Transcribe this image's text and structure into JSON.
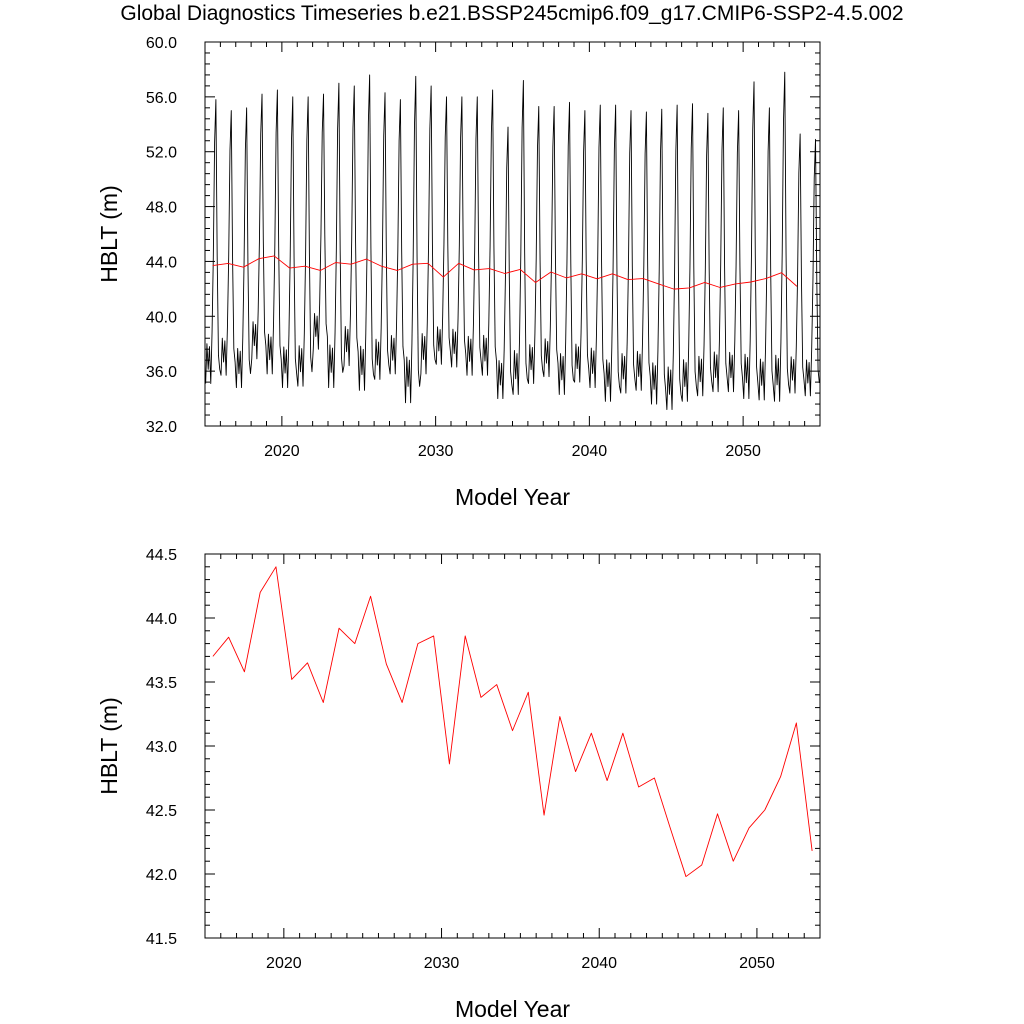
{
  "title": "Global Diagnostics Timeseries b.e21.BSSP245cmip6.f09_g17.CMIP6-SSP2-4.5.002",
  "colors": {
    "monthly": "#000000",
    "annual": "#ff0000"
  },
  "chart_data": [
    {
      "type": "line",
      "title": "Global Diagnostics Timeseries b.e21.BSSP245cmip6.f09_g17.CMIP6-SSP2-4.5.002",
      "xlabel": "Model Year",
      "ylabel": "HBLT (m)",
      "xlim": [
        2015,
        2055
      ],
      "ylim": [
        32.0,
        60.0
      ],
      "xticks": [
        2020,
        2030,
        2040,
        2050
      ],
      "xtick_labels": [
        "2020",
        "2030",
        "2040",
        "2050"
      ],
      "yticks": [
        32.0,
        36.0,
        40.0,
        44.0,
        48.0,
        52.0,
        56.0,
        60.0
      ],
      "ytick_labels": [
        "32.0",
        "36.0",
        "40.0",
        "44.0",
        "48.0",
        "52.0",
        "56.0",
        "60.0"
      ],
      "series": [
        {
          "color": "#000000",
          "resolution": "monthly",
          "start_year": 2015,
          "annual_max": [
            55.8,
            55.0,
            55.2,
            56.2,
            56.5,
            56.0,
            56.0,
            56.2,
            57.0,
            56.8,
            57.6,
            56.3,
            55.8,
            57.5,
            56.8,
            56.0,
            56.0,
            56.0,
            56.5,
            53.8,
            57.2,
            55.3,
            55.3,
            55.6,
            55.0,
            55.4,
            55.4,
            55.0,
            54.9,
            55.1,
            55.4,
            55.5,
            54.8,
            55.2,
            55.0,
            57.1,
            55.2,
            57.8,
            53.3,
            52.9
          ],
          "annual_min": [
            35.1,
            35.7,
            34.8,
            36.9,
            35.8,
            34.8,
            34.9,
            37.6,
            34.8,
            36.4,
            34.6,
            35.4,
            35.8,
            33.7,
            35.8,
            36.5,
            36.3,
            35.7,
            35.7,
            34.0,
            34.3,
            35.1,
            35.6,
            34.3,
            35.2,
            34.8,
            33.8,
            34.4,
            34.6,
            33.6,
            33.2,
            33.8,
            34.2,
            34.5,
            34.5,
            34.0,
            33.9,
            33.8,
            34.4,
            34.2
          ]
        },
        {
          "color": "#ff0000",
          "resolution": "annual",
          "x": [
            2015.5,
            2016.5,
            2017.5,
            2018.5,
            2019.5,
            2020.5,
            2021.5,
            2022.5,
            2023.5,
            2024.5,
            2025.5,
            2026.5,
            2027.5,
            2028.5,
            2029.5,
            2030.5,
            2031.5,
            2032.5,
            2033.5,
            2034.5,
            2035.5,
            2036.5,
            2037.5,
            2038.5,
            2039.5,
            2040.5,
            2041.5,
            2042.5,
            2043.5,
            2044.5,
            2045.5,
            2046.5,
            2047.5,
            2048.5,
            2049.5,
            2050.5,
            2051.5,
            2052.5,
            2053.5
          ],
          "values": [
            43.7,
            43.85,
            43.58,
            44.2,
            44.4,
            43.52,
            43.65,
            43.34,
            43.92,
            43.8,
            44.17,
            43.64,
            43.34,
            43.8,
            43.86,
            42.86,
            43.86,
            43.38,
            43.48,
            43.12,
            43.42,
            42.46,
            43.23,
            42.8,
            43.1,
            42.73,
            43.1,
            42.68,
            42.75,
            42.36,
            41.98,
            42.07,
            42.47,
            42.1,
            42.36,
            42.5,
            42.76,
            43.18,
            42.18
          ]
        }
      ]
    },
    {
      "type": "line",
      "xlabel": "Model Year",
      "ylabel": "HBLT (m)",
      "xlim": [
        2015,
        2054
      ],
      "ylim": [
        41.5,
        44.5
      ],
      "xticks": [
        2020,
        2030,
        2040,
        2050
      ],
      "xtick_labels": [
        "2020",
        "2030",
        "2040",
        "2050"
      ],
      "yticks": [
        41.5,
        42.0,
        42.5,
        43.0,
        43.5,
        44.0,
        44.5
      ],
      "ytick_labels": [
        "41.5",
        "42.0",
        "42.5",
        "43.0",
        "43.5",
        "44.0",
        "44.5"
      ],
      "series": [
        {
          "color": "#ff0000",
          "x": [
            2015.5,
            2016.5,
            2017.5,
            2018.5,
            2019.5,
            2020.5,
            2021.5,
            2022.5,
            2023.5,
            2024.5,
            2025.5,
            2026.5,
            2027.5,
            2028.5,
            2029.5,
            2030.5,
            2031.5,
            2032.5,
            2033.5,
            2034.5,
            2035.5,
            2036.5,
            2037.5,
            2038.5,
            2039.5,
            2040.5,
            2041.5,
            2042.5,
            2043.5,
            2044.5,
            2045.5,
            2046.5,
            2047.5,
            2048.5,
            2049.5,
            2050.5,
            2051.5,
            2052.5,
            2053.5
          ],
          "values": [
            43.7,
            43.85,
            43.58,
            44.2,
            44.4,
            43.52,
            43.65,
            43.34,
            43.92,
            43.8,
            44.17,
            43.64,
            43.34,
            43.8,
            43.86,
            42.86,
            43.86,
            43.38,
            43.48,
            43.12,
            43.42,
            42.46,
            43.23,
            42.8,
            43.1,
            42.73,
            43.1,
            42.68,
            42.75,
            42.36,
            41.98,
            42.07,
            42.47,
            42.1,
            42.36,
            42.5,
            42.76,
            43.18,
            42.18
          ]
        }
      ]
    }
  ]
}
